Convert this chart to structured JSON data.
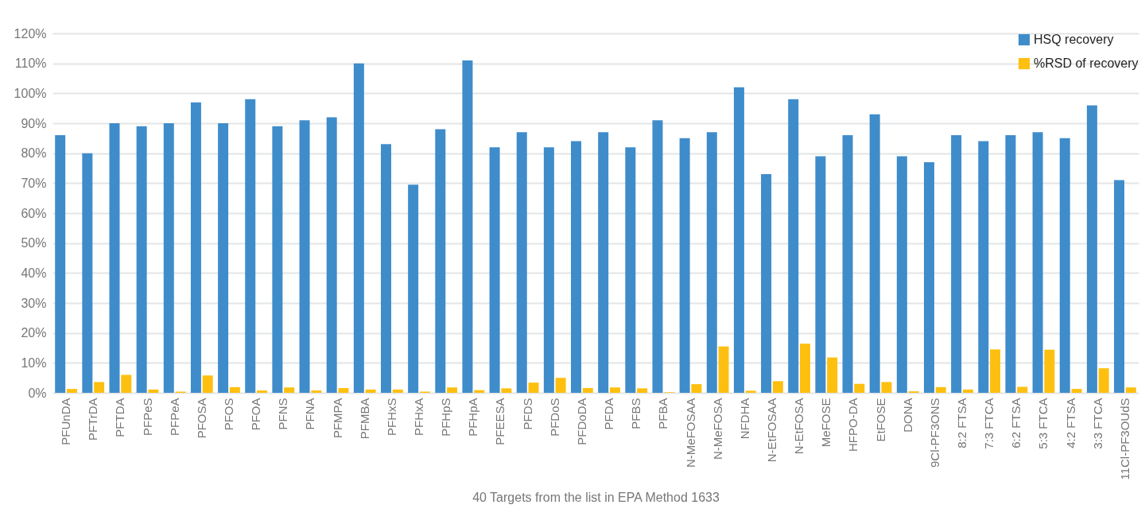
{
  "chart_data": {
    "type": "bar",
    "xlabel": "40 Targets from the list in EPA Method 1633",
    "categories": [
      "PFUnDA",
      "PFTrDA",
      "PFTDA",
      "PFPeS",
      "PFPeA",
      "PFOSA",
      "PFOS",
      "PFOA",
      "PFNS",
      "PFNA",
      "PFMPA",
      "PFMBA",
      "PFHxS",
      "PFHxA",
      "PFHpS",
      "PFHpA",
      "PFEESA",
      "PFDS",
      "PFDoS",
      "PFDoDA",
      "PFDA",
      "PFBS",
      "PFBA",
      "N-MeFOSAA",
      "N-MeFOSA",
      "NFDHA",
      "N-EtFOSAA",
      "N-EtFOSA",
      "MeFOSE",
      "HFPO-DA",
      "EtFOSE",
      "DONA",
      "9Cl-PF3ONS",
      "8:2 FTSA",
      "7:3 FTCA",
      "6:2 FTSA",
      "5:3 FTCA",
      "4:2 FTSA",
      "3:3 FTCA",
      "11Cl-PF3OUdS"
    ],
    "series": [
      {
        "name": "HSQ recovery",
        "color": "#3f8ccb",
        "values": [
          86,
          80,
          90,
          89,
          90,
          97,
          90,
          98,
          89,
          91,
          92,
          110,
          83,
          69.5,
          88,
          111,
          82,
          87,
          82,
          84,
          87,
          82,
          91,
          85,
          87,
          102,
          73,
          98,
          79,
          86,
          93,
          79,
          77,
          86,
          84,
          86,
          87,
          85,
          96,
          71
        ]
      },
      {
        "name": "%RSD of recovery",
        "color": "#fdc010",
        "values": [
          1.3,
          3.6,
          6,
          1.1,
          0.4,
          5.8,
          1.9,
          0.8,
          1.8,
          0.8,
          1.6,
          1.1,
          1.1,
          0.4,
          1.8,
          0.9,
          1.5,
          3.4,
          5,
          1.6,
          1.8,
          1.5,
          0.2,
          2.9,
          15.5,
          0.7,
          3.9,
          16.4,
          11.8,
          3,
          3.6,
          0.5,
          1.9,
          1.1,
          14.5,
          2,
          14.4,
          1.3,
          8.2,
          1.8
        ]
      }
    ],
    "ylim": [
      0,
      120
    ],
    "yticks": [
      {
        "value": 0,
        "label": "0%"
      },
      {
        "value": 10,
        "label": "10%"
      },
      {
        "value": 20,
        "label": "20%"
      },
      {
        "value": 30,
        "label": "30%"
      },
      {
        "value": 40,
        "label": "40%"
      },
      {
        "value": 50,
        "label": "50%"
      },
      {
        "value": 60,
        "label": "60%"
      },
      {
        "value": 70,
        "label": "70%"
      },
      {
        "value": 80,
        "label": "80%"
      },
      {
        "value": 90,
        "label": "90%"
      },
      {
        "value": 100,
        "label": "100%"
      },
      {
        "value": 110,
        "label": "110%"
      },
      {
        "value": 120,
        "label": "120%"
      }
    ],
    "grid": "y",
    "legend": "top right"
  }
}
